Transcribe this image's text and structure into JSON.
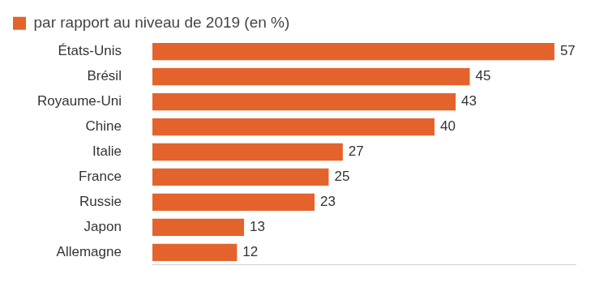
{
  "chart_data": {
    "type": "bar",
    "orientation": "horizontal",
    "categories": [
      "États-Unis",
      "Brésil",
      "Royaume-Uni",
      "Chine",
      "Italie",
      "France",
      "Russie",
      "Japon",
      "Allemagne"
    ],
    "series": [
      {
        "name": "par rapport au niveau de 2019 (en %)",
        "color": "#e4632d",
        "values": [
          57,
          45,
          43,
          40,
          27,
          25,
          23,
          13,
          12
        ]
      }
    ],
    "xlim": [
      0,
      60
    ],
    "grid": false,
    "legend": "top-left",
    "data_labels": true,
    "tick_labels": "y"
  }
}
